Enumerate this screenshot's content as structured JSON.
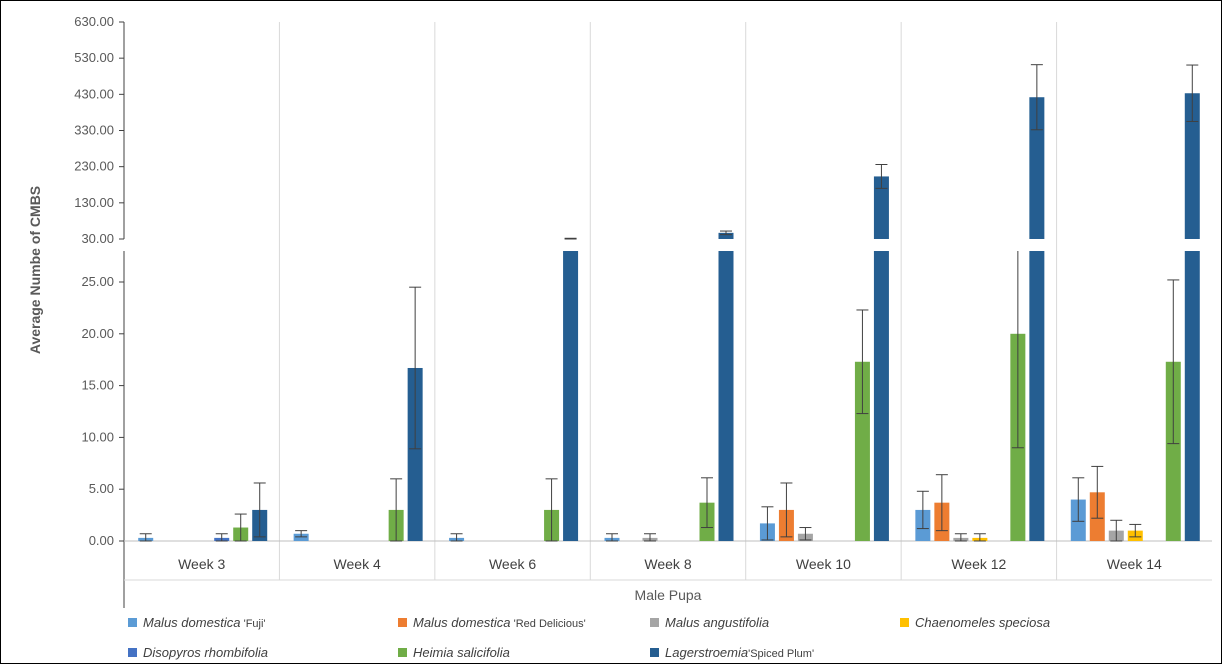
{
  "chart_data": {
    "type": "bar",
    "broken_axis": true,
    "ylabel": "Average Numbe of CMBS",
    "xlabel": "Male Pupa",
    "categories": [
      "Week 3",
      "Week 4",
      "Week 6",
      "Week 8",
      "Week 10",
      "Week 12",
      "Week 14"
    ],
    "upper_ticks": [
      "630.00",
      "530.00",
      "430.00",
      "330.00",
      "230.00",
      "130.00",
      "30.00"
    ],
    "lower_ticks": [
      "25.00",
      "20.00",
      "15.00",
      "10.00",
      "5.00",
      "0.00"
    ],
    "upper_range": [
      30,
      630
    ],
    "lower_range": [
      0,
      28
    ],
    "series": [
      {
        "name_italic": "Malus domestica",
        "name_suffix": " 'Fuji'",
        "color": "#5b9bd5",
        "values": [
          0.3,
          0.7,
          0.3,
          0.3,
          1.7,
          3.0,
          4.0
        ],
        "errors": [
          0.4,
          0.3,
          0.4,
          0.4,
          1.6,
          1.8,
          2.1
        ]
      },
      {
        "name_italic": "Malus domestica",
        "name_suffix": " 'Red Delicious'",
        "color": "#ed7d31",
        "values": [
          0,
          0,
          0,
          0,
          3.0,
          3.7,
          4.7
        ],
        "errors": [
          0,
          0,
          0,
          0,
          2.6,
          2.7,
          2.5
        ]
      },
      {
        "name_italic": "Malus angustifolia",
        "name_suffix": "",
        "color": "#a5a5a5",
        "values": [
          0,
          0,
          0,
          0.3,
          0.7,
          0.3,
          1.0
        ],
        "errors": [
          0,
          0,
          0,
          0.4,
          0.6,
          0.4,
          1.0
        ]
      },
      {
        "name_italic": "Chaenomeles speciosa",
        "name_suffix": "",
        "color": "#ffc000",
        "values": [
          0,
          0,
          0,
          0,
          0,
          0.3,
          1.0
        ],
        "errors": [
          0,
          0,
          0,
          0,
          0,
          0.4,
          0.6
        ]
      },
      {
        "name_italic": "Disopyros rhombifolia",
        "name_suffix": "",
        "color": "#4472c4",
        "values": [
          0.3,
          0,
          0,
          0,
          0,
          0,
          0
        ],
        "errors": [
          0.4,
          0,
          0,
          0,
          0,
          0,
          0
        ]
      },
      {
        "name_italic": "Heimia salicifolia",
        "name_suffix": "",
        "color": "#70ad47",
        "values": [
          1.3,
          3.0,
          3.0,
          3.7,
          17.3,
          20.0,
          17.3
        ],
        "errors": [
          1.3,
          3.0,
          3.0,
          2.4,
          5.0,
          11.0,
          7.9
        ]
      },
      {
        "name_italic": "Lagerstroemia",
        "name_suffix": "'Spiced Plum'",
        "color": "#255e91",
        "values": [
          3.0,
          16.7,
          30,
          47,
          203,
          422,
          433
        ],
        "errors": [
          2.6,
          7.8,
          2,
          5,
          33,
          90,
          78
        ]
      }
    ]
  }
}
